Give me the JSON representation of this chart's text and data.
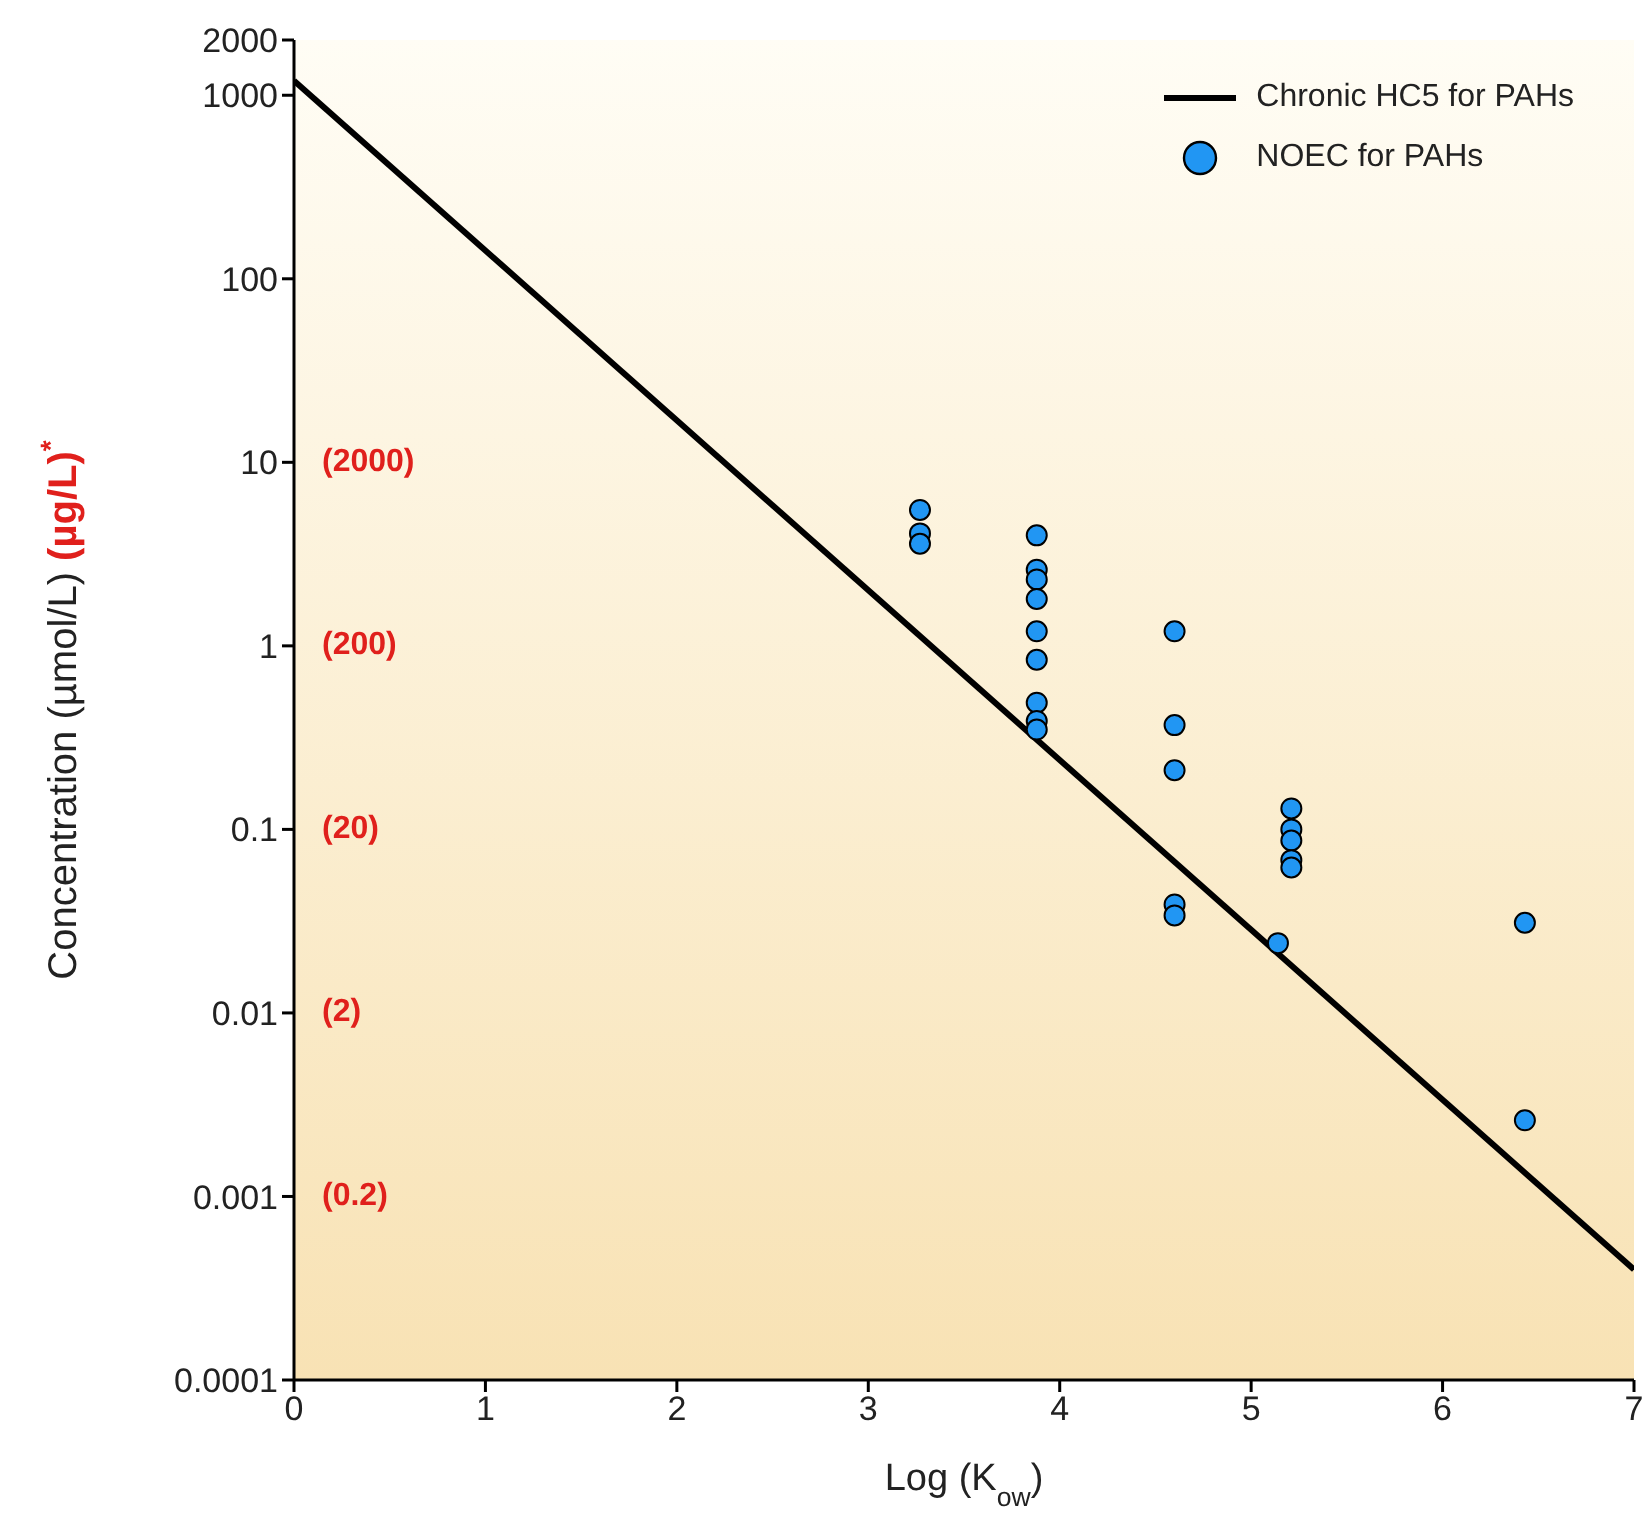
{
  "chart_data": {
    "type": "scatter",
    "xlabel": "Log (K$_{ow}$)",
    "ylabel": "Concentration (µmol/L)",
    "y2label": "(µg/L)$^{*}$",
    "xlim": [
      0,
      7
    ],
    "xticks": [
      0,
      1,
      2,
      3,
      4,
      5,
      6,
      7
    ],
    "ylim": [
      0.0001,
      2000
    ],
    "yticks": [
      0.0001,
      0.001,
      0.01,
      0.1,
      1,
      10,
      100,
      1000,
      2000
    ],
    "log": "y",
    "annotations": [
      "(2000)",
      "(200)",
      "(20)",
      "(2)",
      "(0.2)"
    ],
    "grid": false,
    "legend": "top right",
    "series": [
      {
        "name": "Chronic HC5 for PAHs",
        "type": "line",
        "color": "#000000",
        "x": [
          0,
          7
        ],
        "values": [
          1200,
          0.0004
        ]
      },
      {
        "name": "NOEC for PAHs",
        "type": "scatter",
        "marker": "circle",
        "color": "#2196f3",
        "x": [
          3.27,
          3.27,
          3.27,
          3.88,
          3.88,
          3.88,
          3.88,
          3.88,
          3.88,
          3.88,
          3.88,
          3.88,
          4.6,
          4.6,
          4.6,
          4.6,
          4.6,
          5.14,
          5.21,
          5.21,
          5.21,
          5.21,
          5.21,
          6.43,
          6.43
        ],
        "values": [
          5.5,
          4.1,
          3.6,
          4.0,
          2.6,
          2.3,
          1.8,
          1.2,
          0.84,
          0.49,
          0.39,
          0.35,
          1.2,
          0.37,
          0.21,
          0.039,
          0.034,
          0.024,
          0.13,
          0.1,
          0.087,
          0.068,
          0.062,
          0.031,
          0.0026
        ]
      }
    ]
  }
}
